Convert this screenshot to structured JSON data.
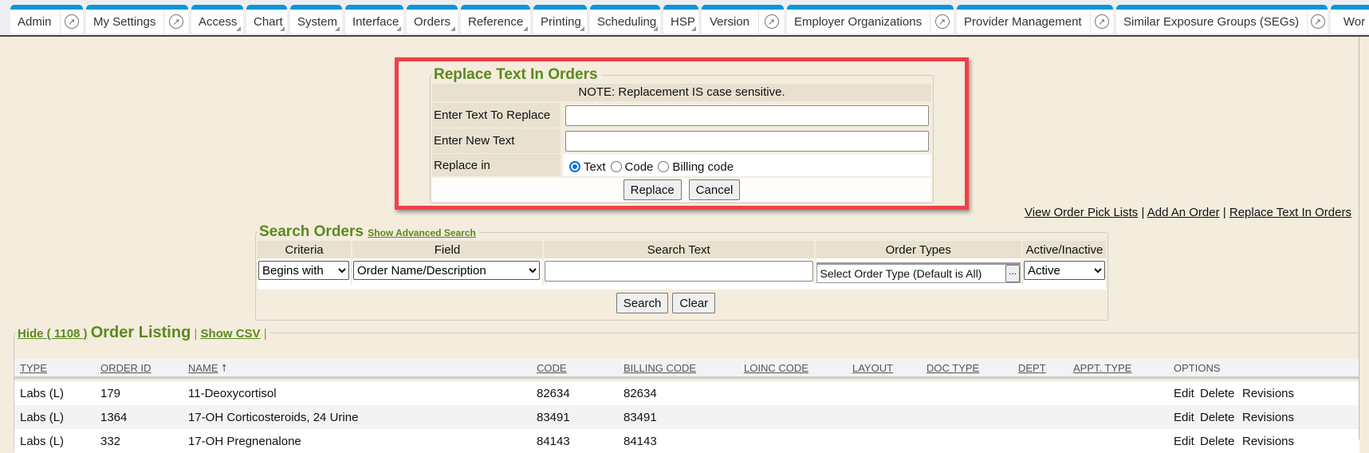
{
  "nav": {
    "tabs": [
      {
        "label": "Admin",
        "ext": true,
        "dd": false,
        "w": 91
      },
      {
        "label": "My Settings",
        "ext": true,
        "dd": false,
        "w": 128
      },
      {
        "label": "Access",
        "ext": false,
        "dd": true,
        "w": 65
      },
      {
        "label": "Chart",
        "ext": false,
        "dd": true,
        "w": 51
      },
      {
        "label": "System",
        "ext": false,
        "dd": true,
        "w": 65
      },
      {
        "label": "Interface",
        "ext": false,
        "dd": true,
        "w": 73
      },
      {
        "label": "Orders",
        "ext": false,
        "dd": true,
        "w": 64
      },
      {
        "label": "Reference",
        "ext": false,
        "dd": true,
        "w": 87
      },
      {
        "label": "Printing",
        "ext": false,
        "dd": true,
        "w": 67
      },
      {
        "label": "Scheduling",
        "ext": false,
        "dd": true,
        "w": 88
      },
      {
        "label": "HSP",
        "ext": false,
        "dd": true,
        "w": 44
      },
      {
        "label": "Version",
        "ext": true,
        "dd": false,
        "w": 103
      },
      {
        "label": "Employer Organizations",
        "ext": true,
        "dd": false,
        "w": 209
      },
      {
        "label": "Provider Management",
        "ext": true,
        "dd": false,
        "w": 196
      },
      {
        "label": "Similar Exposure Groups (SEGs)",
        "ext": true,
        "dd": false,
        "w": 265
      },
      {
        "label": "Wor",
        "ext": false,
        "dd": false,
        "w": 60
      }
    ],
    "ext_icon": "↗"
  },
  "replace": {
    "title": "Replace Text In Orders",
    "note": "NOTE: Replacement IS case sensitive.",
    "text_to_replace_label": "Enter Text To Replace",
    "text_to_replace_value": "",
    "new_text_label": "Enter New Text",
    "new_text_value": "",
    "replace_in_label": "Replace in",
    "options": [
      "Text",
      "Code",
      "Billing code"
    ],
    "selected": "Text",
    "replace_button": "Replace",
    "cancel_button": "Cancel"
  },
  "links": {
    "pick_lists": "View Order Pick Lists",
    "sep": "|",
    "add_order": "Add An Order",
    "replace_text": "Replace Text In Orders"
  },
  "search": {
    "title": "Search Orders",
    "advanced": "Show Advanced Search",
    "headers": [
      "Criteria",
      "Field",
      "Search Text",
      "Order Types",
      "Active/Inactive"
    ],
    "criteria": "Begins with",
    "field": "Order Name/Description",
    "search_text": "",
    "order_types": "Select Order Type (Default is All)",
    "order_types_btn": "...",
    "active": "Active",
    "search_button": "Search",
    "clear_button": "Clear"
  },
  "listing": {
    "hide": "Hide ( 1108 )",
    "title": "Order Listing",
    "sep": "|",
    "show_csv": "Show CSV",
    "columns": [
      "TYPE",
      "ORDER ID",
      "NAME",
      "CODE",
      "BILLING CODE",
      "LOINC CODE",
      "LAYOUT",
      "DOC TYPE",
      "DEPT",
      "APPT. TYPE",
      "OPTIONS"
    ],
    "sort_icon": "arrow-up-icon",
    "rows": [
      [
        "Labs (L)",
        "179",
        "11-Deoxycortisol",
        "82634",
        "82634",
        "",
        "",
        "",
        "",
        "",
        "Edit Delete Revisions"
      ],
      [
        "Labs (L)",
        "1364",
        "17-OH Corticosteroids, 24 Urine",
        "83491",
        "83491",
        "",
        "",
        "",
        "",
        "",
        "Edit Delete Revisions"
      ],
      [
        "Labs (L)",
        "332",
        "17-OH Pregnenalone",
        "84143",
        "84143",
        "",
        "",
        "",
        "",
        "",
        "Edit Delete Revisions"
      ]
    ]
  },
  "colors": {
    "accent": "#0a96d8",
    "highlight": "#f04048",
    "legend": "#5a8a1e",
    "background": "#f4ecdd"
  }
}
